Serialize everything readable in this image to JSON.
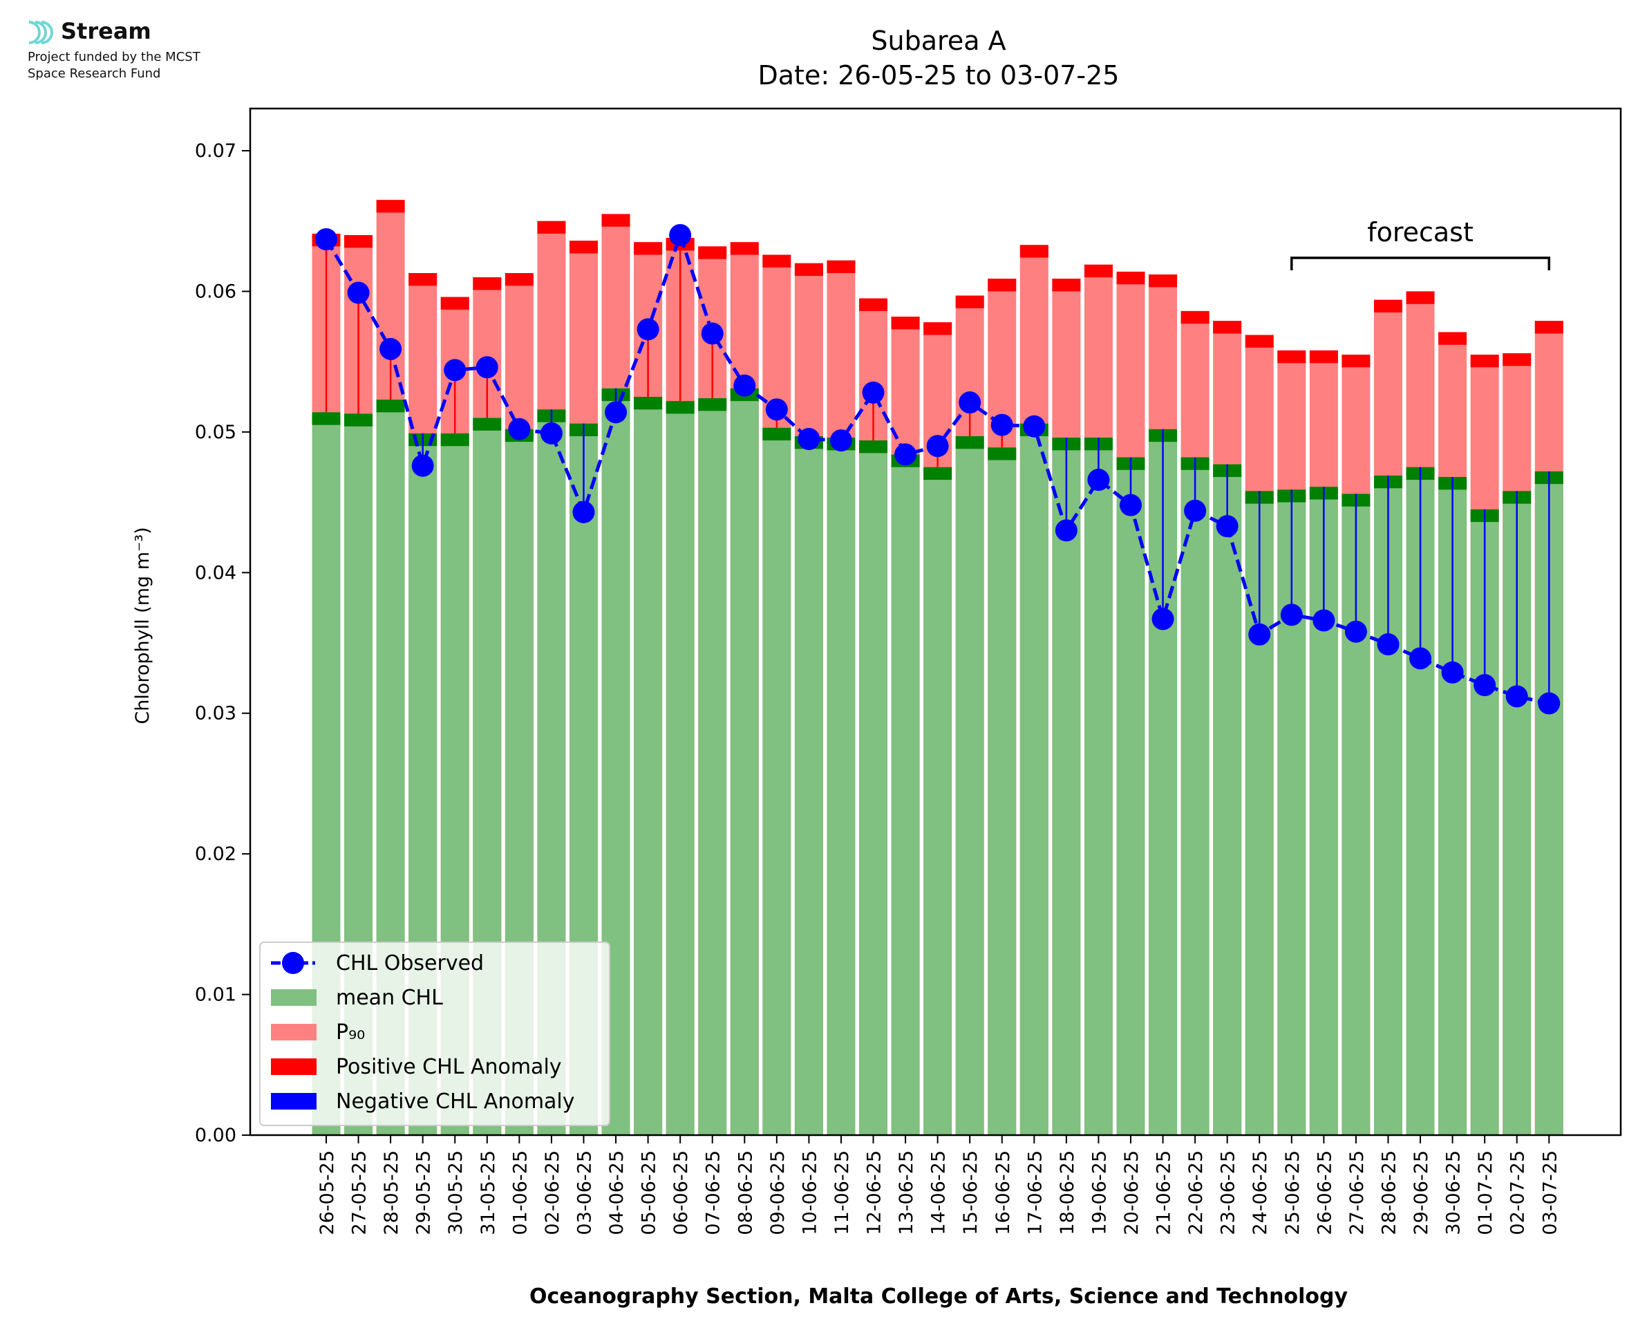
{
  "header": {
    "logo_name": "Stream",
    "funding_line1": "Project funded by the MCST",
    "funding_line2": "Space Research Fund"
  },
  "chart_data": {
    "type": "bar",
    "title": "Subarea A",
    "subtitle": "Date: 26-05-25 to 03-07-25",
    "ylabel": "Chlorophyll (mg m⁻³)",
    "xlabel": "Oceanography Section, Malta College of Arts, Science and Technology",
    "ylim": [
      0,
      0.073
    ],
    "yticks": [
      "0.00",
      "0.01",
      "0.02",
      "0.03",
      "0.04",
      "0.05",
      "0.06",
      "0.07"
    ],
    "ytick_values": [
      0,
      0.01,
      0.02,
      0.03,
      0.04,
      0.05,
      0.06,
      0.07
    ],
    "grid": false,
    "legend_position": "lower-left",
    "categories": [
      "26-05-25",
      "27-05-25",
      "28-05-25",
      "29-05-25",
      "30-05-25",
      "31-05-25",
      "01-06-25",
      "02-06-25",
      "03-06-25",
      "04-06-25",
      "05-06-25",
      "06-06-25",
      "07-06-25",
      "08-06-25",
      "09-06-25",
      "10-06-25",
      "11-06-25",
      "12-06-25",
      "13-06-25",
      "14-06-25",
      "15-06-25",
      "16-06-25",
      "17-06-25",
      "18-06-25",
      "19-06-25",
      "20-06-25",
      "21-06-25",
      "22-06-25",
      "23-06-25",
      "24-06-25",
      "25-06-25",
      "26-06-25",
      "27-06-25",
      "28-06-25",
      "29-06-25",
      "30-06-25",
      "01-07-25",
      "02-07-25",
      "03-07-25"
    ],
    "series": [
      {
        "name": "CHL Observed",
        "style": "dashed-line-markers",
        "color": "#0000ff",
        "values": [
          0.0637,
          0.0599,
          0.0559,
          0.0476,
          0.0544,
          0.0546,
          0.0502,
          0.0499,
          0.0443,
          0.0514,
          0.0573,
          0.064,
          0.057,
          0.0533,
          0.0516,
          0.0495,
          0.0494,
          0.0528,
          0.0484,
          0.049,
          0.0521,
          0.0505,
          0.0504,
          0.043,
          0.0466,
          0.0448,
          0.0367,
          0.0444,
          0.0433,
          0.0356,
          0.037,
          0.0366,
          0.0358,
          0.0349,
          0.0339,
          0.0329,
          0.032,
          0.0312,
          0.0307
        ]
      },
      {
        "name": "mean CHL",
        "style": "bar",
        "color": "#80c080",
        "values": [
          0.0514,
          0.0513,
          0.0523,
          0.0499,
          0.0499,
          0.051,
          0.0502,
          0.0516,
          0.0506,
          0.0531,
          0.0525,
          0.0522,
          0.0524,
          0.0531,
          0.0503,
          0.0497,
          0.0496,
          0.0494,
          0.0484,
          0.0475,
          0.0497,
          0.0489,
          0.0506,
          0.0496,
          0.0496,
          0.0482,
          0.0502,
          0.0482,
          0.0477,
          0.0458,
          0.0459,
          0.0461,
          0.0456,
          0.0469,
          0.0475,
          0.0468,
          0.0445,
          0.0458,
          0.0472
        ]
      },
      {
        "name": "P₉₀",
        "style": "bar",
        "color": "#ff8080",
        "values": [
          0.0641,
          0.064,
          0.0665,
          0.0613,
          0.0596,
          0.061,
          0.0613,
          0.065,
          0.0636,
          0.0655,
          0.0635,
          0.0638,
          0.0632,
          0.0635,
          0.0626,
          0.062,
          0.0622,
          0.0595,
          0.0582,
          0.0578,
          0.0597,
          0.0609,
          0.0633,
          0.0609,
          0.0619,
          0.0614,
          0.0612,
          0.0586,
          0.0579,
          0.0569,
          0.0558,
          0.0558,
          0.0555,
          0.0594,
          0.06,
          0.0571,
          0.0555,
          0.0556,
          0.0579
        ]
      },
      {
        "name": "Positive CHL Anomaly",
        "style": "stem",
        "color": "#ff0000"
      },
      {
        "name": "Negative CHL Anomaly",
        "style": "stem",
        "color": "#0000ff"
      }
    ],
    "annotation": {
      "text": "forecast",
      "from": "25-06-25",
      "to": "03-07-25"
    },
    "colors": {
      "mean_band": "#008000",
      "p90_band": "#ff0000",
      "observed": "#0000ff",
      "logo": "#6fd6d6"
    }
  }
}
